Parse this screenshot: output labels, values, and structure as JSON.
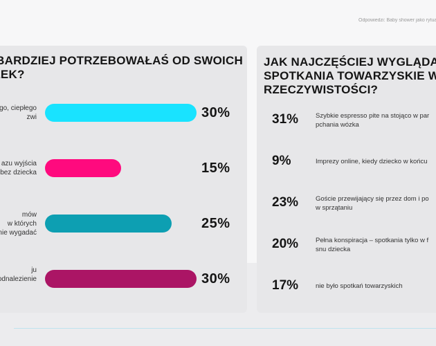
{
  "source": "Odpowiedzi: Baby shower jako rytuał pr",
  "left": {
    "title_line1": "AJBARDZIEJ POTRZEBOWAŁAŚ OD SWOICH",
    "title_line2": "IÓŁEK?",
    "items": [
      {
        "label_line1": "go, ciepłego",
        "label_line2": "zwi",
        "label_line3": "",
        "value": 30,
        "display": "30%",
        "color": "#19e3ff"
      },
      {
        "label_line1": "azu wyjścia",
        "label_line2": "bez dziecka",
        "label_line3": "",
        "value": 15,
        "display": "15%",
        "color": "#ff0a7e"
      },
      {
        "label_line1": "mów",
        "label_line2": "w których",
        "label_line3": "nie wygadać",
        "value": 25,
        "display": "25%",
        "color": "#0d9fb2"
      },
      {
        "label_line1": "ju",
        "label_line2": "odnalezienie",
        "label_line3": "",
        "value": 30,
        "display": "30%",
        "color": "#ab1565"
      }
    ]
  },
  "right": {
    "title_line1": "JAK NAJCZĘŚCIEJ WYGLĄDAŁ",
    "title_line2": "SPOTKANIA TOWARZYSKIE W R",
    "title_line3": "RZECZYWISTOŚCI?",
    "items": [
      {
        "display": "31%",
        "value": 31,
        "text_line1": "Szybkie espresso pite na stojąco w par",
        "text_line2": "pchania wózka"
      },
      {
        "display": "9%",
        "value": 9,
        "text_line1": "Imprezy online, kiedy dziecko w końcu",
        "text_line2": ""
      },
      {
        "display": "23%",
        "value": 23,
        "text_line1": "Goście przewijający się przez dom i po",
        "text_line2": "w sprzątaniu"
      },
      {
        "display": "20%",
        "value": 20,
        "text_line1": "Pełna konspiracja – spotkania tylko w f",
        "text_line2": "snu dziecka"
      },
      {
        "display": "17%",
        "value": 17,
        "text_line1": "nie było spotkań towarzyskich",
        "text_line2": ""
      }
    ]
  },
  "chart_data": [
    {
      "type": "bar",
      "title": "AJBARDZIEJ POTRZEBOWAŁAŚ OD SWOICH IÓŁEK?",
      "categories": [
        "go, ciepłego zwi",
        "azu wyjścia bez dziecka",
        "mów w których nie wygadać",
        "ju odnalezienie"
      ],
      "values": [
        30,
        15,
        25,
        30
      ],
      "colors": [
        "#19e3ff",
        "#ff0a7e",
        "#0d9fb2",
        "#ab1565"
      ],
      "orientation": "horizontal",
      "grid": false
    },
    {
      "type": "table",
      "title": "JAK NAJCZĘŚCIEJ WYGLĄDAŁ SPOTKANIA TOWARZYSKIE W R RZECZYWISTOŚCI?",
      "categories": [
        "Szybkie espresso pite na stojąco w par pchania wózka",
        "Imprezy online, kiedy dziecko w końcu",
        "Goście przewijający się przez dom i po w sprzątaniu",
        "Pełna konspiracja – spotkania tylko w f snu dziecka",
        "nie było spotkań towarzyskich"
      ],
      "values": [
        31,
        9,
        23,
        20,
        17
      ]
    }
  ]
}
